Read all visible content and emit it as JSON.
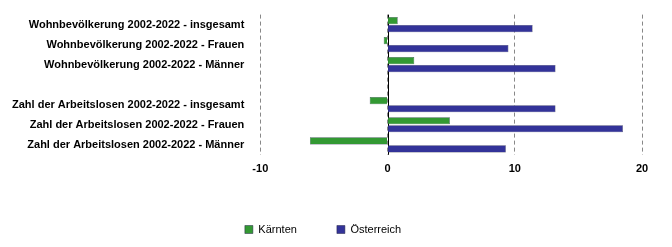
{
  "chart_data": {
    "type": "bar",
    "orientation": "horizontal",
    "categories": [
      "Wohnbevölkerung 2002-2022 - insgesamt",
      "Wohnbevölkerung 2002-2022 - Frauen",
      "Wohnbevölkerung 2002-2022 - Männer",
      null,
      "Zahl der Arbeitslosen 2002-2022 - insgesamt",
      "Zahl der Arbeitslosen 2002-2022 - Frauen",
      "Zahl der Arbeitslosen 2002-2022 - Männer"
    ],
    "series": [
      {
        "name": "Kärnten",
        "color": "#339933",
        "values": [
          0.8,
          -0.3,
          2.1,
          null,
          -1.4,
          4.9,
          -6.1
        ]
      },
      {
        "name": "Österreich",
        "color": "#333399",
        "values": [
          11.4,
          9.5,
          13.2,
          null,
          13.2,
          18.5,
          9.3
        ]
      }
    ],
    "xlim": [
      -10,
      20
    ],
    "xticks": [
      -10,
      0,
      10,
      20
    ],
    "grid": true,
    "legend": "bottom"
  }
}
